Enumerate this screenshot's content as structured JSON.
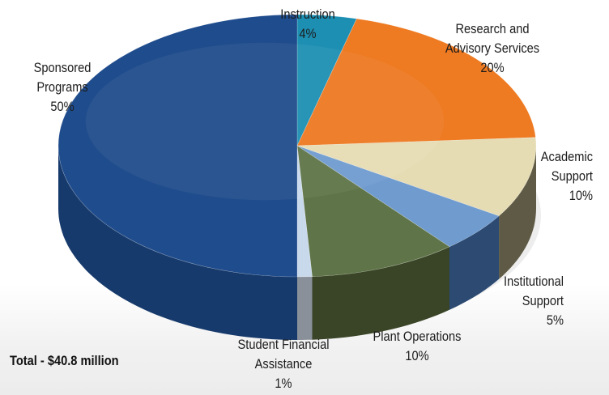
{
  "chart_data": {
    "type": "pie",
    "style": "3d",
    "total_label": "Total - $40.8 million",
    "slices": [
      {
        "name_lines": [
          "Instruction"
        ],
        "pct_label": "4%",
        "value": 4,
        "color": "#1d8fb3",
        "side": "#10607a"
      },
      {
        "name_lines": [
          "Research and",
          "Advisory Services"
        ],
        "pct_label": "20%",
        "value": 20,
        "color": "#ee7a22",
        "side": "#a8521a"
      },
      {
        "name_lines": [
          "Academic",
          "Support"
        ],
        "pct_label": "10%",
        "value": 10,
        "color": "#e6dcb4",
        "side": "#5e5a45"
      },
      {
        "name_lines": [
          "Institutional",
          "Support"
        ],
        "pct_label": "5%",
        "value": 5,
        "color": "#6f9bcf",
        "side": "#2c4a72"
      },
      {
        "name_lines": [
          "Plant Operations"
        ],
        "pct_label": "10%",
        "value": 10,
        "color": "#5f7448",
        "side": "#3a4527"
      },
      {
        "name_lines": [
          "Student Financial",
          "Assistance"
        ],
        "pct_label": "1%",
        "value": 1,
        "color": "#c9d9ec",
        "side": "#8a9099"
      },
      {
        "name_lines": [
          "Sponsored",
          "Programs"
        ],
        "pct_label": "50%",
        "value": 50,
        "color": "#1f4c8c",
        "side": "#173a6c"
      }
    ]
  }
}
